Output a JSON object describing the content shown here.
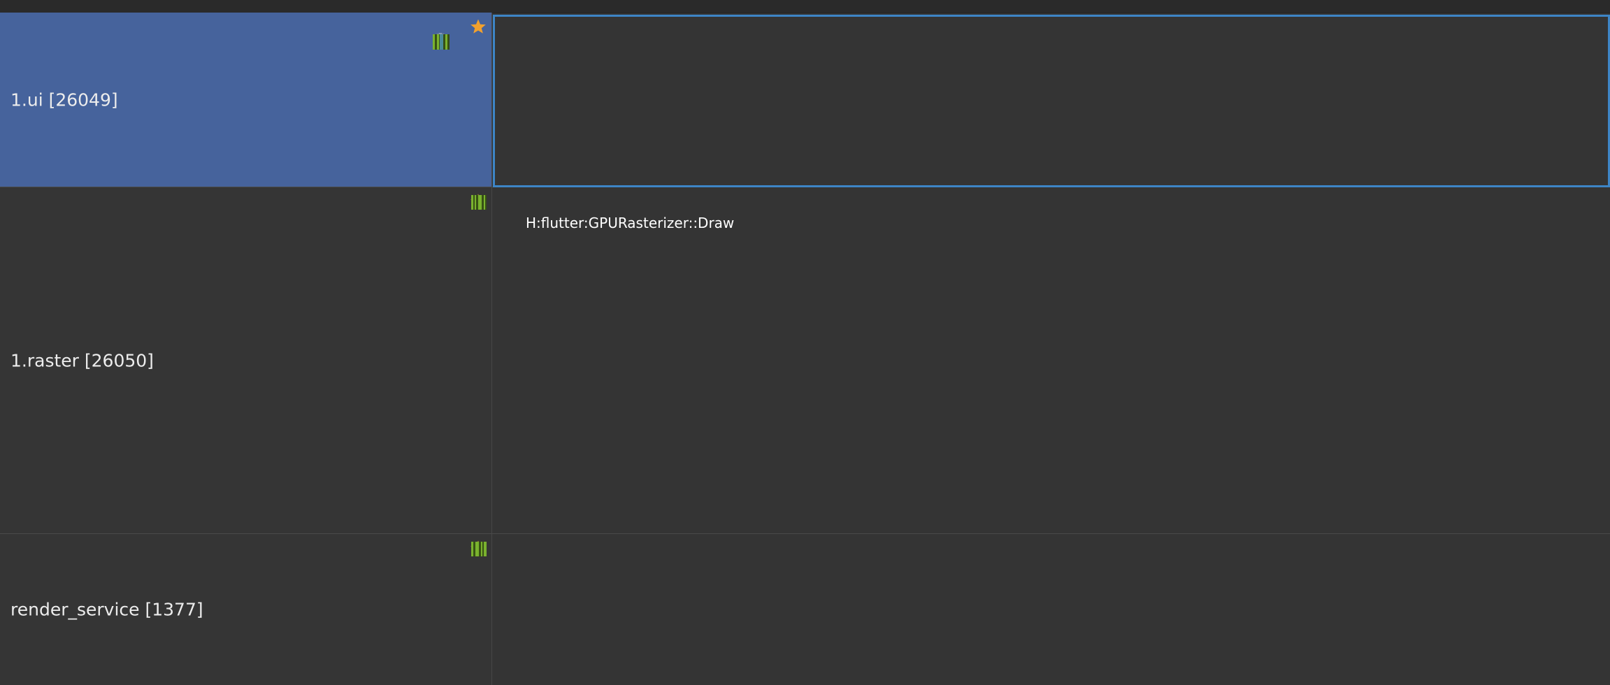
{
  "tracks": [
    {
      "id": "ui",
      "name": "1.ui [26049]",
      "selected": true,
      "pinned": true,
      "starred": true,
      "lanes": [
        "#7ab22e",
        "#c0531e",
        "#1e5a66",
        "#8c2a26",
        "#2d56a8",
        "#b87a1a",
        "#1e5a66"
      ]
    },
    {
      "id": "raster",
      "name": "1.raster [26050]",
      "selected": false,
      "pinned": false,
      "starred": true,
      "highlight_slice": {
        "label": "H:flutter:GPURasterizer::Draw",
        "color": "#c0150e"
      },
      "lanes": [
        "#7ab22e",
        "#c0150e",
        "#a01818",
        "#b8963a",
        "#6a2ea8",
        "#2a9c78",
        "#b89a3a",
        "#e06888",
        "#6a8a3a",
        "#a8906a"
      ]
    },
    {
      "id": "render_service",
      "name": "render_service [1377]",
      "selected": false,
      "pinned": false,
      "starred": true,
      "lanes": [
        "#7ab22e",
        "#a04868",
        "#c8a030",
        "#b88c2a",
        "#5a4aa8",
        "#a02858"
      ]
    }
  ]
}
